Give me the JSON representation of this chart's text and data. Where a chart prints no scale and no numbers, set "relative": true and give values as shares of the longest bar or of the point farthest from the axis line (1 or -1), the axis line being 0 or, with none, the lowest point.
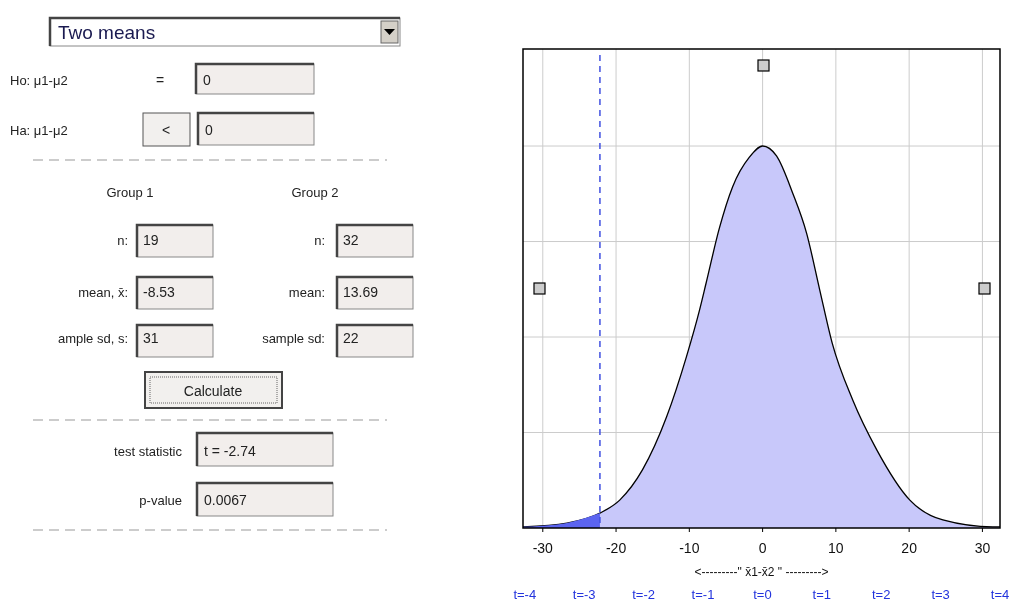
{
  "chart_data": [
    {
      "type": "other",
      "annotations": [
        "Two means",
        "Ho: μ1-μ2",
        "=",
        "0",
        "Ha: μ1-μ2",
        "<",
        "0",
        "Group 1",
        "Group 2",
        "n:",
        "19",
        "n:",
        "32",
        "mean, x̄:",
        "-8.53",
        "mean:",
        "13.69",
        "ample sd, s:",
        "31",
        "sample sd:",
        "22",
        "Calculate",
        "test statistic",
        "t = -2.74",
        "p-value",
        "0.0067"
      ]
    },
    {
      "type": "area",
      "relative": true,
      "xlabel": "<---------\" x̄1-x̄2 \" --------->",
      "xlim": [
        -32.7,
        32.4
      ],
      "xticks": [
        -30,
        -20,
        -10,
        0,
        10,
        20,
        30
      ],
      "x2lim": [
        -4.03,
        4.0
      ],
      "x2ticks": [
        {
          "value": -4,
          "label": "t=-4"
        },
        {
          "value": -3,
          "label": "t=-3"
        },
        {
          "value": -2,
          "label": "t=-2"
        },
        {
          "value": -1,
          "label": "t=-1"
        },
        {
          "value": 0,
          "label": "t=0"
        },
        {
          "value": 1,
          "label": "t=1"
        },
        {
          "value": 2,
          "label": "t=2"
        },
        {
          "value": 3,
          "label": "t=3"
        },
        {
          "value": 4,
          "label": "t=4"
        }
      ],
      "grid": true,
      "series": [
        {
          "color": "#c8c8fa",
          "x": [
            -32.7,
            -26.7,
            -22.2,
            -19.5,
            -16.4,
            -13.1,
            -10.4,
            -8.6,
            -7.7,
            -5.9,
            -4.1,
            -1.8,
            0,
            1.9,
            4.1,
            6.0,
            7.8,
            9.5,
            12.3,
            15.6,
            20.1,
            24.6,
            31.4,
            32.4
          ],
          "values": [
            0.003,
            0.013,
            0.039,
            0.073,
            0.152,
            0.291,
            0.448,
            0.571,
            0.642,
            0.785,
            0.893,
            0.971,
            1,
            0.974,
            0.877,
            0.772,
            0.623,
            0.484,
            0.335,
            0.204,
            0.073,
            0.021,
            0.003,
            0.003
          ]
        },
        {
          "color": "#5b64f0",
          "x": [
            -32.7,
            -30,
            -26.7,
            -24.5,
            -22.2
          ],
          "values": [
            0.003,
            0.006,
            0.013,
            0.024,
            0.039
          ]
        }
      ],
      "ref_lines": [
        {
          "axis": "x",
          "value": -22.2,
          "color": "#4050e0",
          "line_style": "dashed"
        }
      ]
    }
  ]
}
